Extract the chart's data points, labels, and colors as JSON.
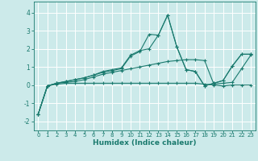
{
  "xlabel": "Humidex (Indice chaleur)",
  "bg_color": "#cceaea",
  "grid_color": "#ffffff",
  "line_color": "#1a7a6e",
  "xlim": [
    -0.5,
    23.5
  ],
  "ylim": [
    -2.5,
    4.6
  ],
  "xticks": [
    0,
    1,
    2,
    3,
    4,
    5,
    6,
    7,
    8,
    9,
    10,
    11,
    12,
    13,
    14,
    15,
    16,
    17,
    18,
    19,
    20,
    21,
    22,
    23
  ],
  "yticks": [
    -2,
    -1,
    0,
    1,
    2,
    3,
    4
  ],
  "lines": [
    {
      "x": [
        0,
        1,
        2,
        3,
        4,
        5,
        6,
        7,
        8,
        9,
        10,
        11,
        12,
        13,
        14,
        15,
        16,
        17,
        18,
        19,
        20,
        21,
        22,
        23
      ],
      "y": [
        -1.6,
        -0.05,
        0.05,
        0.1,
        0.1,
        0.1,
        0.1,
        0.1,
        0.1,
        0.1,
        0.1,
        0.1,
        0.1,
        0.1,
        0.1,
        0.1,
        0.1,
        0.1,
        0.05,
        0.0,
        -0.05,
        0.0,
        0.0,
        0.0
      ]
    },
    {
      "x": [
        0,
        1,
        2,
        3,
        4,
        5,
        6,
        7,
        8,
        9,
        10,
        11,
        12,
        13,
        14,
        15,
        16,
        17,
        18,
        19,
        20,
        21,
        22,
        23
      ],
      "y": [
        -1.6,
        -0.05,
        0.1,
        0.15,
        0.2,
        0.3,
        0.45,
        0.6,
        0.7,
        0.8,
        0.9,
        1.0,
        1.1,
        1.2,
        1.3,
        1.35,
        1.4,
        1.4,
        1.35,
        0.05,
        0.1,
        0.15,
        0.9,
        1.65
      ]
    },
    {
      "x": [
        0,
        1,
        2,
        3,
        4,
        5,
        6,
        7,
        8,
        9,
        10,
        11,
        12,
        13,
        14,
        15,
        16,
        17,
        18,
        19,
        20,
        21,
        22,
        23
      ],
      "y": [
        -1.6,
        -0.05,
        0.1,
        0.2,
        0.3,
        0.4,
        0.55,
        0.7,
        0.8,
        0.9,
        1.6,
        1.85,
        2.8,
        2.75,
        3.85,
        2.1,
        0.85,
        0.75,
        -0.05,
        0.1,
        0.25,
        1.05,
        1.7,
        1.7
      ]
    },
    {
      "x": [
        0,
        1,
        2,
        3,
        4,
        5,
        6,
        7,
        8,
        9,
        10,
        11,
        12,
        13,
        14,
        15,
        16,
        17,
        18,
        19,
        20,
        21,
        22,
        23
      ],
      "y": [
        -1.6,
        -0.05,
        0.1,
        0.2,
        0.3,
        0.4,
        0.55,
        0.75,
        0.85,
        0.95,
        1.65,
        1.9,
        2.0,
        2.75,
        3.85,
        2.1,
        0.85,
        0.75,
        -0.05,
        0.1,
        0.25,
        1.05,
        1.7,
        1.7
      ]
    }
  ]
}
